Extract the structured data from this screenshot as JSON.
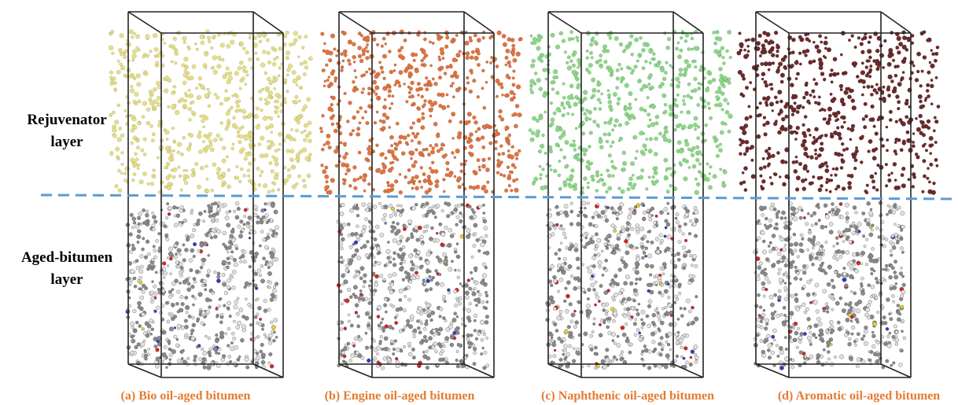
{
  "side_labels": [
    {
      "lines": [
        "Rejuvenator",
        "layer"
      ]
    },
    {
      "lines": [
        "Aged-bitumen",
        "layer"
      ]
    }
  ],
  "panels": [
    {
      "caption": "(a) Bio oil-aged bitumen",
      "color": "#e6df86"
    },
    {
      "caption": "(b) Engine oil-aged bitumen",
      "color": "#e07440"
    },
    {
      "caption": "(c) Naphthenic oil-aged bitumen",
      "color": "#8cd887"
    },
    {
      "caption": "(d) Aromatic oil-aged bitumen",
      "color": "#6b2b2b"
    }
  ]
}
